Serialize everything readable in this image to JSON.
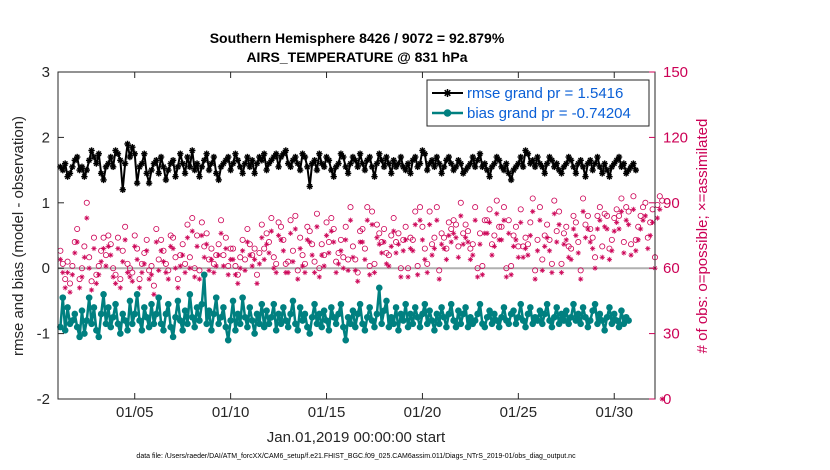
{
  "chart_data": {
    "type": "line",
    "title": "Southern Hemisphere 8426 / 9072 = 92.879%",
    "subtitle": "AIRS_TEMPERATURE @ 831 hPa",
    "xlabel": "Jan.01,2019 00:00:00 start",
    "ylabel": "rmse and bias (model - observation)",
    "ylabel_right": "# of obs: o=possible; ×=assimilated",
    "ylim": [
      -2,
      3
    ],
    "ylim_right": [
      0,
      150
    ],
    "xlim": [
      1,
      32.125
    ],
    "x_ticks": [
      5,
      10,
      15,
      20,
      25,
      30
    ],
    "x_tick_labels": [
      "01/05",
      "01/10",
      "01/15",
      "01/20",
      "01/25",
      "01/30"
    ],
    "y_ticks": [
      -2,
      -1,
      0,
      1,
      2,
      3
    ],
    "y_tick_labels": [
      "-2",
      "-1",
      "0",
      "1",
      "2",
      "3"
    ],
    "y_ticks_right": [
      0,
      30,
      60,
      90,
      120,
      150
    ],
    "y_tick_labels_right": [
      "0",
      "30",
      "60",
      "90",
      "120",
      "150"
    ],
    "legend_position": "top-right",
    "footnote": "data file: /Users/raeder/DAI/ATM_forcXX/CAM6_setup/f.e21.FHIST_BGC.f09_025.CAM6assim.011/Diags_NTrS_2019-01/obs_diag_output.nc",
    "series": [
      {
        "name": "rmse grand pr = 1.5416",
        "color": "#000000",
        "marker": "star",
        "values": [
          1.55,
          1.5,
          1.6,
          1.4,
          1.45,
          1.55,
          1.65,
          1.7,
          1.5,
          1.55,
          1.4,
          1.5,
          1.65,
          1.8,
          1.7,
          1.6,
          1.75,
          1.45,
          1.35,
          1.55,
          1.6,
          1.7,
          1.55,
          1.8,
          1.75,
          1.65,
          1.2,
          1.6,
          1.9,
          1.7,
          1.85,
          1.75,
          1.3,
          1.55,
          1.6,
          1.75,
          1.45,
          1.3,
          1.5,
          1.6,
          1.65,
          1.45,
          1.7,
          1.55,
          1.35,
          1.5,
          1.6,
          1.65,
          1.4,
          1.55,
          1.75,
          1.6,
          1.45,
          1.7,
          1.55,
          1.8,
          1.5,
          1.6,
          1.4,
          1.55,
          1.65,
          1.75,
          1.5,
          1.6,
          1.7,
          1.45,
          1.35,
          1.55,
          1.6,
          1.65,
          1.7,
          1.5,
          1.6,
          1.75,
          1.65,
          1.55,
          1.45,
          1.6,
          1.7,
          1.55,
          1.65,
          1.45,
          1.6,
          1.7,
          1.65,
          1.75,
          1.5,
          1.6,
          1.65,
          1.7,
          1.75,
          1.55,
          1.7,
          1.75,
          1.8,
          1.6,
          1.55,
          1.65,
          1.7,
          1.6,
          1.5,
          1.75,
          1.7,
          1.55,
          1.25,
          1.6,
          1.65,
          1.5,
          1.75,
          1.6,
          1.55,
          1.7,
          1.65,
          1.5,
          1.4,
          1.55,
          1.6,
          1.75,
          1.7,
          1.55,
          1.45,
          1.6,
          1.7,
          1.65,
          1.55,
          1.75,
          1.6,
          1.5,
          1.65,
          1.7,
          1.55,
          1.4,
          1.6,
          1.75,
          1.65,
          1.55,
          1.7,
          1.6,
          1.45,
          1.65,
          1.55,
          1.6,
          1.7,
          1.55,
          1.5,
          1.6,
          1.45,
          1.65,
          1.7,
          1.55,
          1.6,
          1.8,
          1.75,
          1.5,
          1.6,
          1.65,
          1.55,
          1.7,
          1.6,
          1.45,
          1.55,
          1.65,
          1.7,
          1.6,
          1.5,
          1.55,
          1.65,
          1.6,
          1.45,
          1.5,
          1.55,
          1.6,
          1.7,
          1.55,
          1.65,
          1.75,
          1.55,
          1.6,
          1.5,
          1.4,
          1.55,
          1.6,
          1.7,
          1.65,
          1.55,
          1.5,
          1.6,
          1.45,
          1.35,
          1.5,
          1.55,
          1.6,
          1.7,
          1.55,
          1.8,
          1.75,
          1.6,
          1.65,
          1.55,
          1.7,
          1.6,
          1.55,
          1.45,
          1.6,
          1.7,
          1.65,
          1.55,
          1.6,
          1.5,
          1.45,
          1.55,
          1.6,
          1.7,
          1.65,
          1.55,
          1.45,
          1.6,
          1.65,
          1.55,
          1.4,
          1.6,
          1.65,
          1.5,
          1.6,
          1.7,
          1.55,
          1.45,
          1.6,
          1.5,
          1.4,
          1.55,
          1.6,
          1.65,
          1.7,
          1.55,
          1.6,
          1.45,
          1.5,
          1.55,
          1.6,
          1.5
        ]
      },
      {
        "name": "bias grand pr = -0.74204",
        "color": "#008080",
        "marker": "dot",
        "values": [
          -0.9,
          -0.45,
          -0.95,
          -0.6,
          -0.85,
          -0.8,
          -0.7,
          -0.9,
          -1.05,
          -0.65,
          -1.0,
          -0.8,
          -0.45,
          -0.85,
          -0.6,
          -0.95,
          -1.05,
          -0.7,
          -0.4,
          -0.85,
          -0.6,
          -0.9,
          -0.75,
          -0.55,
          -0.85,
          -1.0,
          -0.7,
          -0.8,
          -0.95,
          -0.5,
          -0.85,
          -0.7,
          -0.4,
          -0.8,
          -0.95,
          -0.6,
          -0.75,
          -0.9,
          -0.55,
          -0.85,
          -0.7,
          -0.45,
          -0.85,
          -0.95,
          -0.7,
          -0.55,
          -0.9,
          -1.05,
          -0.75,
          -0.5,
          -0.8,
          -0.95,
          -0.65,
          -0.85,
          -0.4,
          -0.75,
          -0.9,
          -0.6,
          -0.8,
          -0.55,
          -0.1,
          -0.85,
          -0.65,
          -0.95,
          -0.7,
          -0.45,
          -0.85,
          -0.75,
          -0.6,
          -0.9,
          -1.1,
          -0.8,
          -0.5,
          -0.95,
          -0.7,
          -0.85,
          -0.45,
          -0.75,
          -0.9,
          -0.6,
          -0.8,
          -1.0,
          -0.7,
          -0.85,
          -0.55,
          -0.9,
          -0.65,
          -0.85,
          -0.75,
          -0.55,
          -0.95,
          -0.7,
          -0.85,
          -0.6,
          -0.8,
          -0.9,
          -0.7,
          -0.5,
          -0.85,
          -0.95,
          -0.6,
          -0.8,
          -0.7,
          -0.9,
          -1.0,
          -0.75,
          -0.55,
          -0.85,
          -0.7,
          -0.9,
          -0.65,
          -0.8,
          -0.95,
          -0.6,
          -0.75,
          -0.85,
          -0.7,
          -0.55,
          -0.9,
          -1.1,
          -0.75,
          -0.85,
          -0.65,
          -0.9,
          -0.7,
          -0.55,
          -0.85,
          -0.95,
          -0.75,
          -0.6,
          -0.8,
          -0.9,
          -0.7,
          -0.3,
          -0.85,
          -0.65,
          -0.5,
          -0.9,
          -0.75,
          -0.85,
          -0.6,
          -0.95,
          -0.7,
          -0.8,
          -0.55,
          -0.9,
          -0.7,
          -0.85,
          -0.6,
          -0.75,
          -0.9,
          -0.7,
          -0.55,
          -0.85,
          -0.65,
          -0.8,
          -0.95,
          -0.7,
          -0.85,
          -0.6,
          -0.75,
          -0.9,
          -0.7,
          -0.55,
          -0.8,
          -0.9,
          -0.65,
          -0.85,
          -0.7,
          -0.6,
          -0.9,
          -0.75,
          -0.85,
          -0.8,
          -0.7,
          -0.55,
          -0.85,
          -0.9,
          -0.75,
          -0.65,
          -0.85,
          -0.7,
          -0.8,
          -0.9,
          -0.75,
          -0.6,
          -0.8,
          -0.85,
          -0.7,
          -0.65,
          -0.85,
          -0.75,
          -0.55,
          -0.8,
          -0.9,
          -0.7,
          -0.6,
          -0.85,
          -0.75,
          -0.8,
          -0.65,
          -0.85,
          -0.7,
          -0.55,
          -0.8,
          -0.9,
          -0.75,
          -0.6,
          -0.85,
          -0.7,
          -0.8,
          -0.65,
          -0.85,
          -0.75,
          -0.55,
          -0.8,
          -0.7,
          -0.85,
          -0.6,
          -0.75,
          -0.9,
          -0.8,
          -0.65,
          -0.55,
          -0.85,
          -0.7,
          -0.8,
          -0.95,
          -0.75,
          -0.6,
          -0.85,
          -0.7,
          -0.8,
          -0.9,
          -0.65,
          -0.85,
          -0.75,
          -0.8
        ]
      }
    ],
    "obs_possible": [
      68,
      62,
      55,
      63,
      53,
      61,
      72,
      78,
      55,
      60,
      70,
      90,
      65,
      54,
      74,
      57,
      61,
      68,
      74,
      66,
      75,
      71,
      60,
      57,
      74,
      55,
      68,
      79,
      62,
      60,
      58,
      75,
      69,
      55,
      62,
      67,
      73,
      59,
      61,
      52,
      78,
      64,
      73,
      68,
      62,
      59,
      75,
      74,
      65,
      55,
      66,
      71,
      62,
      80,
      65,
      83,
      60,
      75,
      59,
      81,
      70,
      76,
      64,
      69,
      62,
      66,
      71,
      82,
      66,
      74,
      61,
      69,
      69,
      61,
      57,
      65,
      73,
      64,
      78,
      71,
      66,
      69,
      57,
      67,
      80,
      69,
      76,
      72,
      83,
      65,
      62,
      81,
      79,
      73,
      62,
      63,
      82,
      68,
      84,
      59,
      74,
      66,
      62,
      79,
      77,
      71,
      63,
      85,
      60,
      71,
      66,
      81,
      72,
      83,
      78,
      63,
      67,
      73,
      65,
      79,
      64,
      88,
      70,
      64,
      58,
      77,
      78,
      69,
      88,
      61,
      86,
      62,
      80,
      76,
      72,
      78,
      67,
      66,
      75,
      83,
      72,
      76,
      60,
      73,
      79,
      60,
      74,
      73,
      86,
      61,
      88,
      79,
      69,
      62,
      86,
      71,
      74,
      88,
      59,
      76,
      74,
      69,
      81,
      78,
      82,
      80,
      70,
      90,
      76,
      80,
      77,
      69,
      71,
      88,
      60,
      76,
      61,
      82,
      82,
      87,
      71,
      75,
      91,
      79,
      79,
      88,
      60,
      82,
      61,
      75,
      79,
      70,
      87,
      70,
      74,
      71,
      81,
      92,
      59,
      73,
      88,
      64,
      75,
      80,
      73,
      62,
      91,
      77,
      86,
      62,
      76,
      79,
      70,
      69,
      84,
      81,
      72,
      59,
      92,
      80,
      84,
      78,
      74,
      65,
      84,
      88,
      70,
      85,
      84,
      69,
      73,
      83,
      87,
      84,
      92,
      72,
      88,
      86,
      71,
      93,
      73,
      79,
      84,
      88,
      90,
      74,
      81,
      87,
      65,
      89,
      93,
      91
    ],
    "obs_assimilated": [
      64,
      58,
      51,
      58,
      49,
      57,
      67,
      72,
      51,
      56,
      65,
      83,
      60,
      50,
      69,
      53,
      57,
      63,
      69,
      61,
      70,
      66,
      56,
      53,
      69,
      51,
      63,
      73,
      58,
      56,
      54,
      70,
      64,
      51,
      58,
      62,
      68,
      55,
      57,
      48,
      72,
      59,
      68,
      63,
      58,
      55,
      70,
      69,
      60,
      51,
      61,
      66,
      58,
      74,
      60,
      77,
      56,
      70,
      55,
      75,
      65,
      71,
      59,
      64,
      58,
      61,
      66,
      76,
      61,
      69,
      57,
      64,
      64,
      57,
      53,
      60,
      68,
      59,
      72,
      66,
      61,
      64,
      53,
      62,
      74,
      64,
      71,
      67,
      77,
      60,
      58,
      75,
      73,
      68,
      58,
      58,
      76,
      63,
      78,
      55,
      69,
      61,
      58,
      73,
      72,
      66,
      58,
      79,
      56,
      66,
      61,
      75,
      67,
      77,
      72,
      58,
      62,
      68,
      60,
      73,
      59,
      82,
      65,
      59,
      54,
      72,
      72,
      64,
      82,
      57,
      80,
      58,
      74,
      71,
      67,
      72,
      62,
      61,
      70,
      77,
      67,
      71,
      56,
      68,
      73,
      56,
      69,
      68,
      80,
      57,
      82,
      73,
      64,
      58,
      80,
      66,
      69,
      82,
      55,
      71,
      69,
      64,
      75,
      72,
      76,
      74,
      65,
      84,
      71,
      74,
      72,
      64,
      66,
      82,
      56,
      71,
      57,
      76,
      76,
      81,
      66,
      70,
      85,
      73,
      73,
      82,
      56,
      76,
      57,
      70,
      73,
      65,
      81,
      65,
      69,
      66,
      75,
      86,
      55,
      68,
      82,
      59,
      70,
      74,
      68,
      58,
      85,
      72,
      80,
      58,
      71,
      73,
      65,
      64,
      78,
      75,
      67,
      55,
      86,
      74,
      78,
      72,
      69,
      60,
      78,
      82,
      65,
      79,
      78,
      64,
      68,
      77,
      81,
      78,
      86,
      67,
      82,
      80,
      66,
      87,
      68,
      73,
      78,
      82,
      84,
      69,
      75,
      81,
      60,
      83,
      87,
      0
    ]
  }
}
